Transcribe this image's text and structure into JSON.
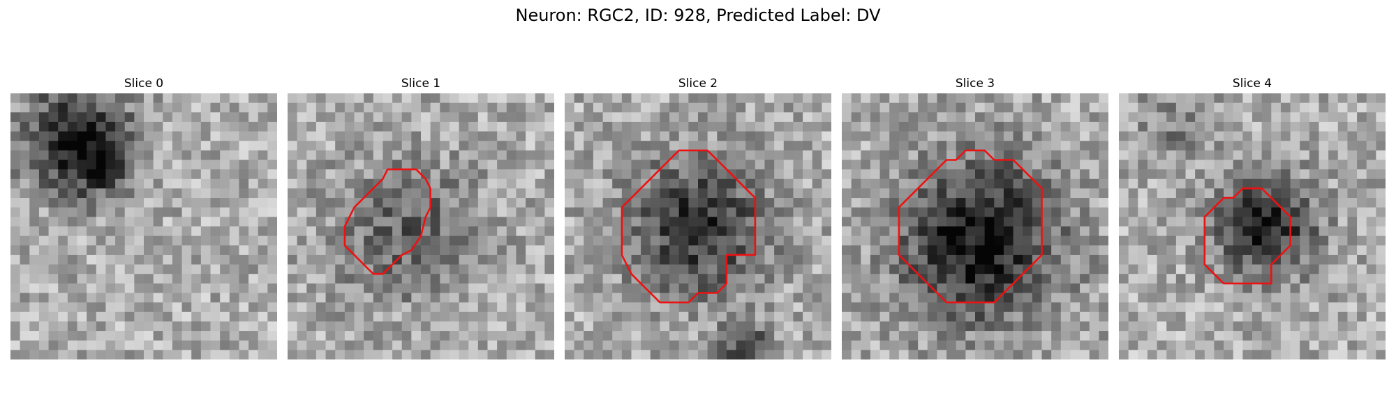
{
  "figure": {
    "title": "Neuron: RGC2, ID: 928, Predicted Label: DV"
  },
  "colors": {
    "contour": "#ee1111",
    "colormap": "grayscale"
  },
  "panels": [
    {
      "title": "Slice 0",
      "has_contour": false
    },
    {
      "title": "Slice 1",
      "has_contour": true
    },
    {
      "title": "Slice 2",
      "has_contour": true
    },
    {
      "title": "Slice 3",
      "has_contour": true
    },
    {
      "title": "Slice 4",
      "has_contour": true
    }
  ]
}
